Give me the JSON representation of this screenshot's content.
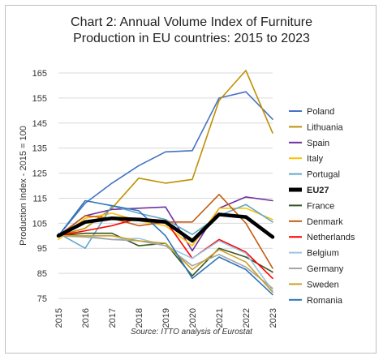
{
  "chart_data": {
    "type": "line",
    "title": "Chart 2: Annual Volume Index of Furniture Production in EU countries: 2015 to 2023",
    "title_lines": [
      "Chart 2: Annual Volume Index of Furniture",
      "Production in EU countries: 2015 to 2023"
    ],
    "ylabel": "Production Index - 2015 = 100",
    "xlabel": "",
    "source": "Source: ITTO analysis of Eurostat",
    "ylim": [
      75,
      165
    ],
    "yticks": [
      75,
      85,
      95,
      105,
      115,
      125,
      135,
      145,
      155,
      165
    ],
    "x": [
      "2015",
      "2016",
      "2017",
      "2018",
      "2019",
      "2020",
      "2021",
      "2022",
      "2023"
    ],
    "grid": true,
    "legend_position": "right",
    "series": [
      {
        "name": "Poland",
        "color": "#4472c4",
        "width": 1.6,
        "values": [
          100,
          113,
          121,
          128,
          133.5,
          134,
          155,
          157.5,
          146.5
        ]
      },
      {
        "name": "Lithuania",
        "color": "#bf9000",
        "width": 1.6,
        "values": [
          100,
          103,
          111,
          123,
          121,
          122.5,
          154,
          166,
          141
        ]
      },
      {
        "name": "Spain",
        "color": "#7030a0",
        "width": 1.6,
        "values": [
          100,
          108,
          110.5,
          111,
          111.5,
          94,
          111,
          115.5,
          114
        ]
      },
      {
        "name": "Italy",
        "color": "#ffc000",
        "width": 1.6,
        "values": [
          98.5,
          107,
          109,
          106,
          104,
          96,
          111,
          111,
          106.5
        ]
      },
      {
        "name": "Portugal",
        "color": "#5fa8c8",
        "width": 1.6,
        "values": [
          101,
          95,
          112,
          109,
          106.5,
          100.5,
          108,
          112.5,
          105.5
        ]
      },
      {
        "name": "EU27",
        "color": "#000000",
        "width": 4.5,
        "values": [
          100,
          105.5,
          107,
          106.5,
          105.5,
          98,
          108.5,
          107.5,
          99.5
        ]
      },
      {
        "name": "France",
        "color": "#375623",
        "width": 1.6,
        "values": [
          100,
          101,
          101,
          96,
          97,
          84,
          95,
          91.5,
          85.5
        ]
      },
      {
        "name": "Denmark",
        "color": "#c55a11",
        "width": 1.6,
        "values": [
          100,
          108,
          107,
          104,
          105.5,
          105.5,
          116.5,
          105,
          87
        ]
      },
      {
        "name": "Netherlands",
        "color": "#ff0000",
        "width": 1.6,
        "values": [
          100,
          102,
          104,
          107,
          106,
          91,
          98.5,
          93.5,
          83
        ]
      },
      {
        "name": "Belgium",
        "color": "#9dc3e6",
        "width": 1.6,
        "values": [
          100,
          100,
          98.5,
          99,
          96,
          91,
          98,
          93,
          78
        ]
      },
      {
        "name": "Germany",
        "color": "#a5a5a5",
        "width": 1.6,
        "values": [
          100,
          99.5,
          98.5,
          98,
          96,
          88,
          92.5,
          87.5,
          79
        ]
      },
      {
        "name": "Sweden",
        "color": "#c9a227",
        "width": 1.6,
        "values": [
          100,
          100,
          100,
          98,
          97,
          86.5,
          94.5,
          89.5,
          77.5
        ]
      },
      {
        "name": "Romania",
        "color": "#2e75b6",
        "width": 1.6,
        "values": [
          100,
          114,
          112,
          110,
          100,
          83,
          91.5,
          86.5,
          76.5
        ]
      }
    ]
  }
}
